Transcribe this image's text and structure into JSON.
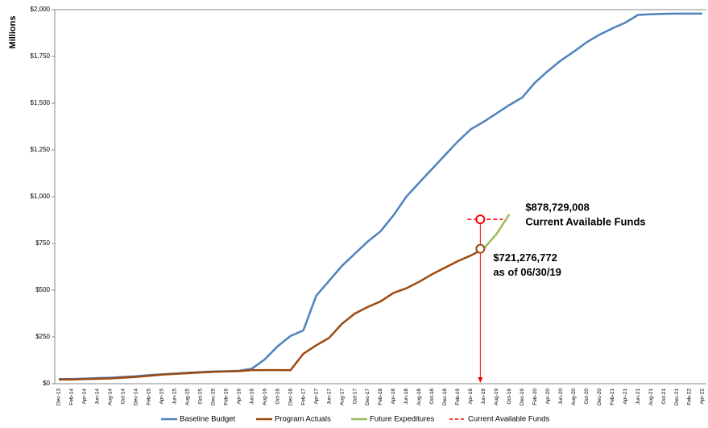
{
  "chart_data": {
    "type": "line",
    "y_label": "Millions",
    "categories": [
      "Dec-13",
      "Feb-14",
      "Apr-14",
      "Jun-14",
      "Aug-14",
      "Oct-14",
      "Dec-14",
      "Feb-15",
      "Apr-15",
      "Jun-15",
      "Aug-15",
      "Oct-15",
      "Dec-15",
      "Feb-16",
      "Apr-16",
      "Jun-16",
      "Aug-16",
      "Oct-16",
      "Dec-16",
      "Feb-17",
      "Apr-17",
      "Jun-17",
      "Aug-17",
      "Oct-17",
      "Dec-17",
      "Feb-18",
      "Apr-18",
      "Jun-18",
      "Aug-18",
      "Oct-18",
      "Dec-18",
      "Feb-19",
      "Apr-19",
      "Jun-19",
      "Aug-19",
      "Oct-19",
      "Dec-19",
      "Feb-20",
      "Apr-20",
      "Jun-20",
      "Aug-20",
      "Oct-20",
      "Dec-20",
      "Feb-21",
      "Apr-21",
      "Jun-21",
      "Aug-21",
      "Oct-21",
      "Dec-21",
      "Feb-22",
      "Apr-22"
    ],
    "series": [
      {
        "name": "Baseline Budget",
        "color": "#4f81bd",
        "style": "solid",
        "values": [
          25,
          25,
          27,
          30,
          32,
          36,
          40,
          46,
          50,
          54,
          58,
          62,
          65,
          67,
          69,
          80,
          130,
          200,
          255,
          285,
          470,
          550,
          630,
          695,
          760,
          815,
          900,
          1000,
          1075,
          1148,
          1222,
          1295,
          1360,
          1400,
          1445,
          1490,
          1530,
          1610,
          1672,
          1728,
          1775,
          1825,
          1866,
          1900,
          1930,
          1972,
          1976,
          1978,
          1979,
          1979,
          1979
        ]
      },
      {
        "name": "Program Actuals",
        "color": "#9c4a10",
        "style": "solid",
        "values": [
          22,
          22,
          24,
          26,
          28,
          32,
          36,
          42,
          48,
          52,
          56,
          60,
          63,
          65,
          67,
          72,
          73,
          73,
          72,
          160,
          205,
          245,
          320,
          375,
          410,
          440,
          485,
          510,
          545,
          585,
          620,
          655,
          685,
          721.276772,
          null,
          null,
          null,
          null,
          null,
          null,
          null,
          null,
          null,
          null,
          null,
          null,
          null,
          null,
          null,
          null,
          null
        ]
      },
      {
        "name": "Future Expeditures",
        "color": "#9bbb59",
        "style": "solid",
        "values": [
          null,
          null,
          null,
          null,
          null,
          null,
          null,
          null,
          null,
          null,
          null,
          null,
          null,
          null,
          null,
          null,
          null,
          null,
          null,
          null,
          null,
          null,
          null,
          null,
          null,
          null,
          null,
          null,
          null,
          null,
          null,
          null,
          null,
          721.276772,
          800,
          905,
          null,
          null,
          null,
          null,
          null,
          null,
          null,
          null,
          null,
          null,
          null,
          null,
          null,
          null,
          null
        ]
      },
      {
        "name": "Current Available Funds",
        "color": "#ff0000",
        "style": "dashed",
        "values": [
          null,
          null,
          null,
          null,
          null,
          null,
          null,
          null,
          null,
          null,
          null,
          null,
          null,
          null,
          null,
          null,
          null,
          null,
          null,
          null,
          null,
          null,
          null,
          null,
          null,
          null,
          null,
          null,
          null,
          null,
          null,
          null,
          null,
          878.729008,
          null,
          null,
          null,
          null,
          null,
          null,
          null,
          null,
          null,
          null,
          null,
          null,
          null,
          null,
          null,
          null,
          null
        ]
      }
    ],
    "annotations": [
      {
        "series": 3,
        "index": 33,
        "label": "$878,729,008",
        "sublabel": "Current Available Funds",
        "color": "#ff0000"
      },
      {
        "series": 1,
        "index": 33,
        "label": "$721,276,772",
        "sublabel": "as of 06/30/19",
        "color": "#9c4a10"
      }
    ],
    "ylim": [
      0,
      2000
    ],
    "yticks": [
      {
        "value": 0,
        "label": "$0"
      },
      {
        "value": 250,
        "label": "$250"
      },
      {
        "value": 500,
        "label": "$500"
      },
      {
        "value": 750,
        "label": "$750"
      },
      {
        "value": 1000,
        "label": "$1,000"
      },
      {
        "value": 1250,
        "label": "$1,250"
      },
      {
        "value": 1500,
        "label": "$1,500"
      },
      {
        "value": 1750,
        "label": "$1,750"
      },
      {
        "value": 2000,
        "label": "$2,000"
      }
    ],
    "grid": false,
    "legend": "bottom"
  }
}
